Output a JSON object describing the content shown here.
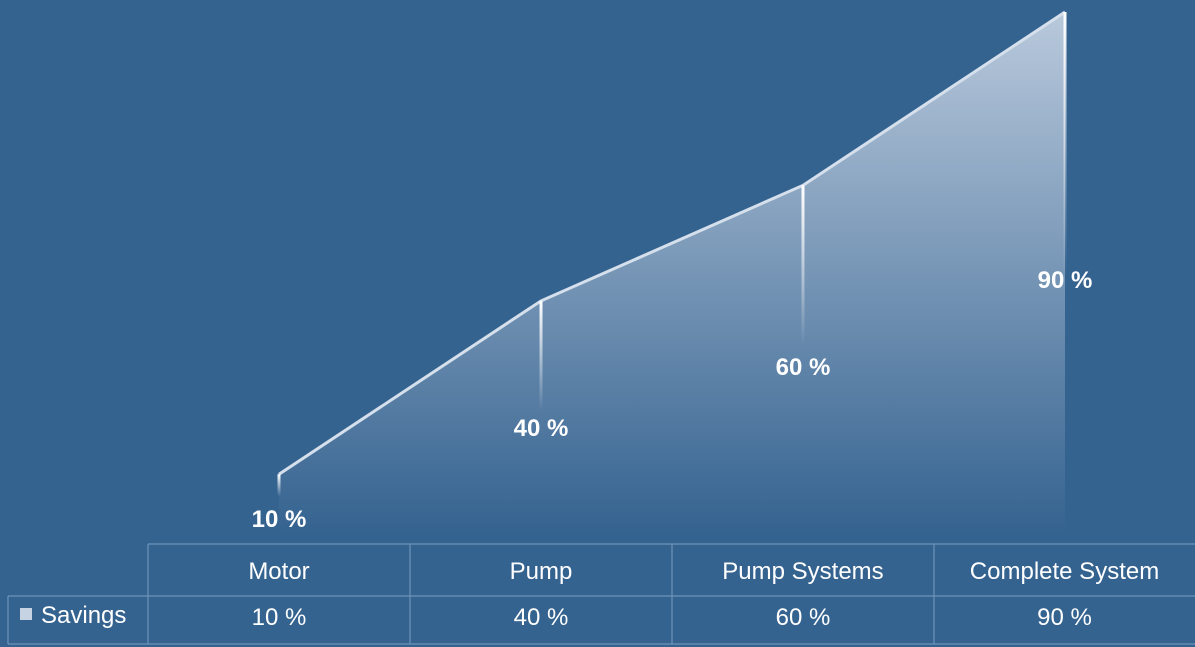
{
  "chart_data": {
    "type": "area",
    "categories": [
      "Motor",
      "Pump",
      "Pump Systems",
      "Complete System"
    ],
    "series": [
      {
        "name": "Savings",
        "values": [
          10,
          40,
          60,
          90
        ]
      }
    ],
    "data_labels": [
      "10 %",
      "40 %",
      "60 %",
      "90 %"
    ],
    "ylim": [
      0,
      90
    ],
    "grid": false,
    "legend": "data-table",
    "data_table": {
      "header": [
        "Motor",
        "Pump",
        "Pump Systems",
        "Complete System"
      ],
      "row_label": "Savings",
      "row_values": [
        "10 %",
        "40 %",
        "60 %",
        "90 %"
      ]
    },
    "colors": {
      "background": "#356390",
      "area_top": "#b9c9dc",
      "area_bottom": "#356390",
      "edge": "#d5e0ec",
      "text": "#ffffff",
      "table_lines": "#6e93b8",
      "legend_key": "#c5d3e2"
    }
  }
}
